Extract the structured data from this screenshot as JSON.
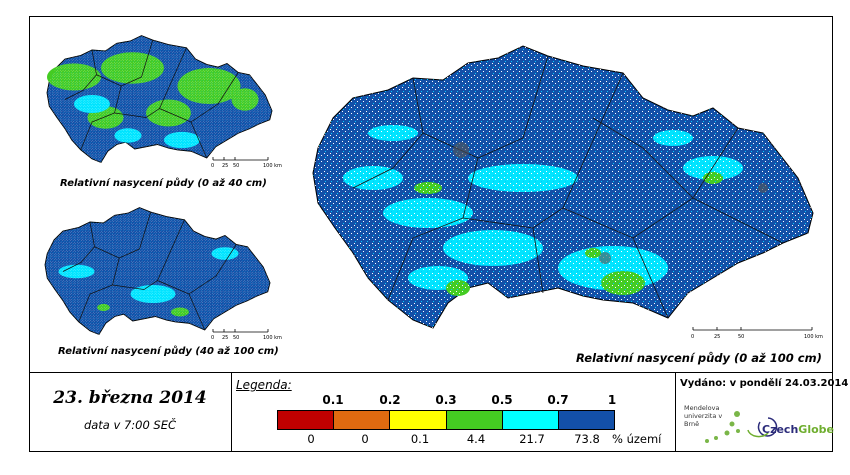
{
  "maps": {
    "top_left": {
      "caption": "Relativní nasycení půdy (0 až 40 cm)"
    },
    "bottom_left": {
      "caption": "Relativní nasycení půdy (40 až 100 cm)"
    },
    "main": {
      "caption": "Relativní nasycení půdy (0 až 100 cm)"
    }
  },
  "scale_bar": {
    "labels": [
      "0",
      "25",
      "50",
      "100 km"
    ]
  },
  "info": {
    "date": "23. března 2014",
    "time": "data v 7:00 SEČ"
  },
  "legend": {
    "title": "Legenda:",
    "classes": [
      "0.1",
      "0.2",
      "0.3",
      "0.5",
      "0.7",
      "1"
    ],
    "percentages": [
      "0",
      "0",
      "0.1",
      "4.4",
      "21.7",
      "73.8"
    ],
    "percent_unit": "% území",
    "colors": [
      "#c00000",
      "#e06a10",
      "#ffff00",
      "#44cc22",
      "#00ffff",
      "#1350a8"
    ]
  },
  "publisher": {
    "issued": "Vydáno: v pondělí 24.03.2014",
    "mendel": "Mendelova univerzita v Brně",
    "czechglobe_a": "Czech",
    "czechglobe_b": "Globe"
  }
}
